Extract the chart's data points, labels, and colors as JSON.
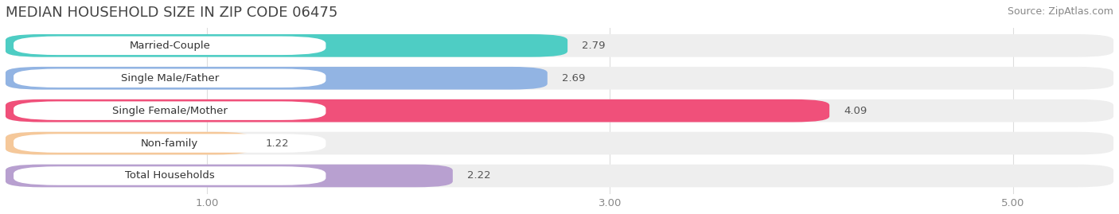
{
  "title": "MEDIAN HOUSEHOLD SIZE IN ZIP CODE 06475",
  "source": "Source: ZipAtlas.com",
  "categories": [
    "Married-Couple",
    "Single Male/Father",
    "Single Female/Mother",
    "Non-family",
    "Total Households"
  ],
  "values": [
    2.79,
    2.69,
    4.09,
    1.22,
    2.22
  ],
  "bar_colors": [
    "#4ecdc4",
    "#92b4e3",
    "#f0507a",
    "#f5c89a",
    "#b8a0d0"
  ],
  "xlim": [
    0.0,
    5.5
  ],
  "xticks": [
    1.0,
    3.0,
    5.0
  ],
  "background_color": "#ffffff",
  "bar_bg_color": "#eeeeee",
  "row_bg_color": "#f5f5f5",
  "title_fontsize": 13,
  "source_fontsize": 9,
  "label_fontsize": 9.5,
  "value_fontsize": 9.5
}
